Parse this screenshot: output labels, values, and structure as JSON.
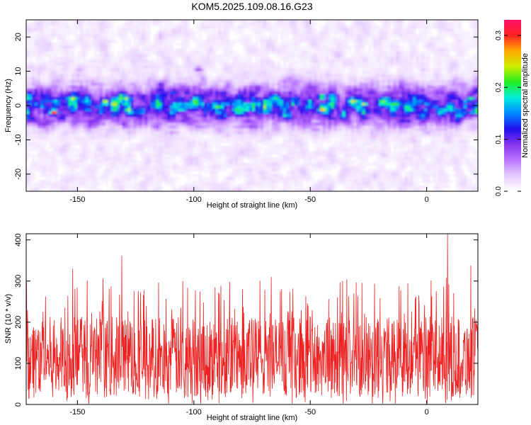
{
  "title": "KOM5.2025.109.08.16.G23",
  "chart_data": [
    {
      "type": "heatmap",
      "xlabel": "Height of straight line (km)",
      "ylabel": "Frequency (Hz)",
      "xlim": [
        -172,
        22
      ],
      "ylim": [
        -25,
        25
      ],
      "xticks": [
        -150,
        -100,
        -50,
        0
      ],
      "yticks": [
        -20,
        -10,
        0,
        10,
        20
      ],
      "colorbar": {
        "label": "Normalized spectral amplitude",
        "range": [
          0.0,
          0.33
        ],
        "ticks": [
          0.0,
          0.1,
          0.2,
          0.3
        ],
        "colors": [
          "#ffffff",
          "#e6ccff",
          "#bb77ff",
          "#8833ee",
          "#2211ee",
          "#0088ff",
          "#00eedd",
          "#22ee22",
          "#ccee00",
          "#ffaa00",
          "#ff2222",
          "#ff1166"
        ]
      },
      "band": {
        "center_hz": 0,
        "half_width_hz": 4,
        "peak_amplitude": 0.33
      },
      "hotspots": [
        {
          "x": -160,
          "y": -2,
          "value": 0.32
        },
        {
          "x": -138,
          "y": 1,
          "value": 0.27
        },
        {
          "x": -45,
          "y": 2.5,
          "value": 0.24
        },
        {
          "x": -27,
          "y": 0.5,
          "value": 0.24
        },
        {
          "x": 19,
          "y": 2,
          "value": 0.22
        },
        {
          "x": -98,
          "y": 10.5,
          "value": 0.08
        }
      ]
    },
    {
      "type": "line",
      "xlabel": "Height of straight line (km)",
      "ylabel": "SNR (10 * v/v)",
      "xlim": [
        -172,
        22
      ],
      "ylim": [
        0,
        415
      ],
      "xticks": [
        -150,
        -100,
        -50,
        0
      ],
      "yticks": [
        0,
        100,
        200,
        300,
        400
      ],
      "series": [
        {
          "color": "#ee2222",
          "typical_range": [
            40,
            220
          ],
          "mean": 115,
          "peaks": [
            {
              "x": 9,
              "y": 415
            },
            {
              "x": -131,
              "y": 362
            },
            {
              "x": -152,
              "y": 330
            },
            {
              "x": 19,
              "y": 338
            }
          ]
        }
      ]
    }
  ]
}
